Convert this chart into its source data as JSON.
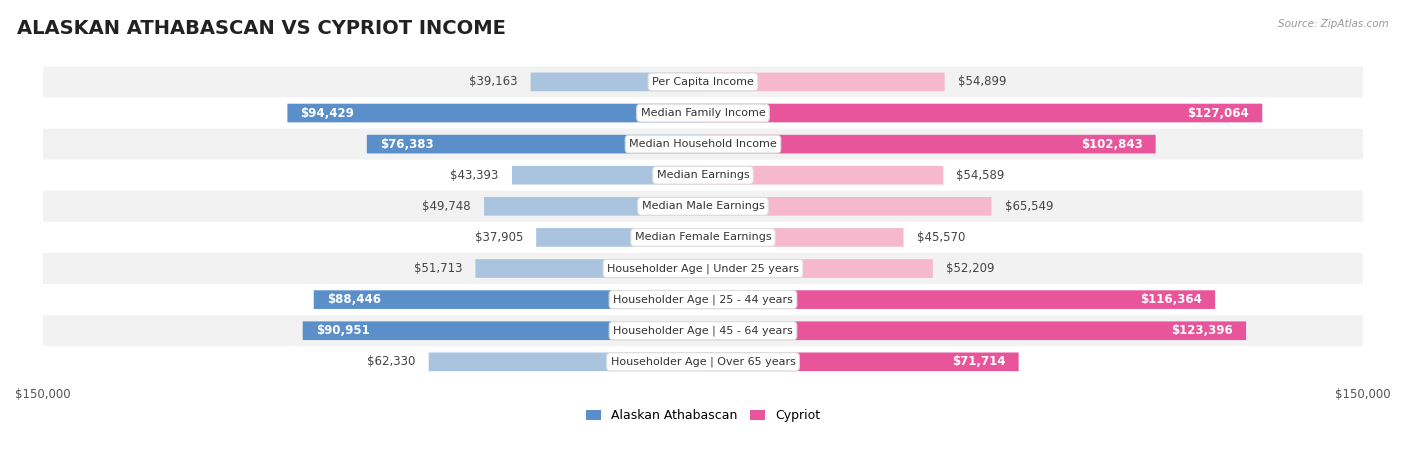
{
  "title": "ALASKAN ATHABASCAN VS CYPRIOT INCOME",
  "source": "Source: ZipAtlas.com",
  "categories": [
    "Per Capita Income",
    "Median Family Income",
    "Median Household Income",
    "Median Earnings",
    "Median Male Earnings",
    "Median Female Earnings",
    "Householder Age | Under 25 years",
    "Householder Age | 25 - 44 years",
    "Householder Age | 45 - 64 years",
    "Householder Age | Over 65 years"
  ],
  "left_values": [
    39163,
    94429,
    76383,
    43393,
    49748,
    37905,
    51713,
    88446,
    90951,
    62330
  ],
  "right_values": [
    54899,
    127064,
    102843,
    54589,
    65549,
    45570,
    52209,
    116364,
    123396,
    71714
  ],
  "left_labels": [
    "$39,163",
    "$94,429",
    "$76,383",
    "$43,393",
    "$49,748",
    "$37,905",
    "$51,713",
    "$88,446",
    "$90,951",
    "$62,330"
  ],
  "right_labels": [
    "$54,899",
    "$127,064",
    "$102,843",
    "$54,589",
    "$65,549",
    "$45,570",
    "$52,209",
    "$116,364",
    "$123,396",
    "$71,714"
  ],
  "left_color_light": "#aac4e0",
  "left_color_dark": "#5b8fc9",
  "right_color_light": "#f5b8cc",
  "right_color_dark": "#e8559a",
  "max_val": 150000,
  "legend_left": "Alaskan Athabascan",
  "legend_right": "Cypriot",
  "background_color": "#ffffff",
  "row_bg_odd": "#f2f2f2",
  "row_bg_even": "#ffffff",
  "bar_height": 0.6,
  "title_fontsize": 14,
  "label_fontsize": 8.5,
  "category_fontsize": 8,
  "inside_threshold": 70000
}
